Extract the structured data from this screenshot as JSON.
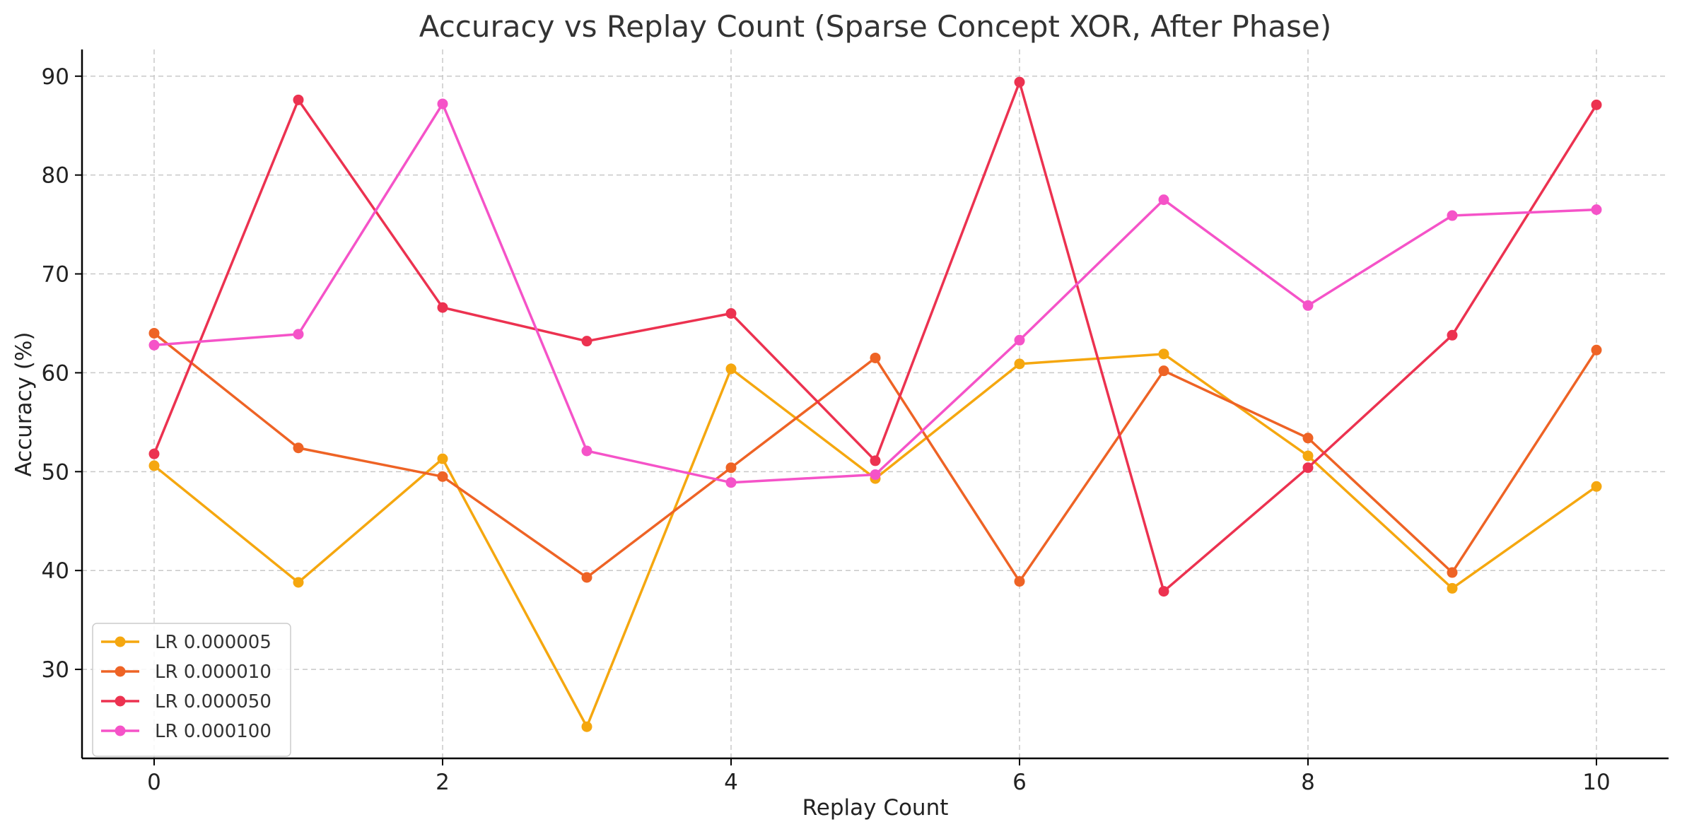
{
  "chart_data": {
    "type": "line",
    "title": "Accuracy vs Replay Count (Sparse Concept XOR, After Phase)",
    "xlabel": "Replay Count",
    "ylabel": "Accuracy (%)",
    "x": [
      0,
      1,
      2,
      3,
      4,
      5,
      6,
      7,
      8,
      9,
      10
    ],
    "xlim": [
      -0.5,
      10.5
    ],
    "ylim": [
      21,
      92.7
    ],
    "xticks": [
      0,
      2,
      4,
      6,
      8,
      10
    ],
    "yticks": [
      30,
      40,
      50,
      60,
      70,
      80,
      90
    ],
    "grid": true,
    "legend_position": "bottom-left",
    "series": [
      {
        "name": "LR 0.000005",
        "color": "#F5A70F",
        "values": [
          50.6,
          38.8,
          51.3,
          24.2,
          60.4,
          49.3,
          60.9,
          61.9,
          51.6,
          38.2,
          48.5
        ]
      },
      {
        "name": "LR 0.000010",
        "color": "#EE6325",
        "values": [
          64.0,
          52.4,
          49.5,
          39.3,
          50.4,
          61.5,
          38.9,
          60.2,
          53.4,
          39.8,
          62.3
        ]
      },
      {
        "name": "LR 0.000050",
        "color": "#EC3250",
        "values": [
          51.8,
          87.6,
          66.6,
          63.2,
          66.0,
          51.1,
          89.4,
          37.9,
          50.4,
          63.8,
          87.1
        ]
      },
      {
        "name": "LR 0.000100",
        "color": "#F553C8",
        "values": [
          62.8,
          63.9,
          87.2,
          52.1,
          48.9,
          49.7,
          63.3,
          77.5,
          66.8,
          75.9,
          76.5
        ]
      }
    ]
  }
}
